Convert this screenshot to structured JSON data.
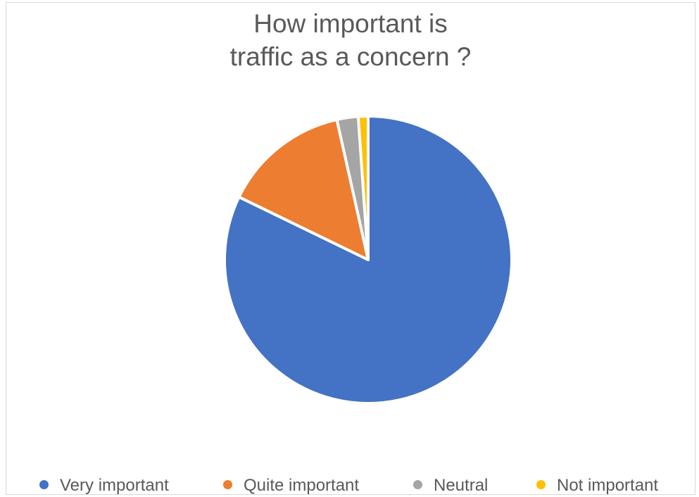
{
  "chart_data": {
    "type": "pie",
    "title": [
      "How important is",
      "traffic as a concern ?"
    ],
    "categories": [
      "Very important",
      "Quite important",
      "Neutral",
      "Not important"
    ],
    "values": [
      82.2,
      14.3,
      2.4,
      1.1
    ],
    "colors": [
      "#4472c4",
      "#ed7d31",
      "#a5a5a5",
      "#ffc000"
    ],
    "legend": "bottom"
  }
}
